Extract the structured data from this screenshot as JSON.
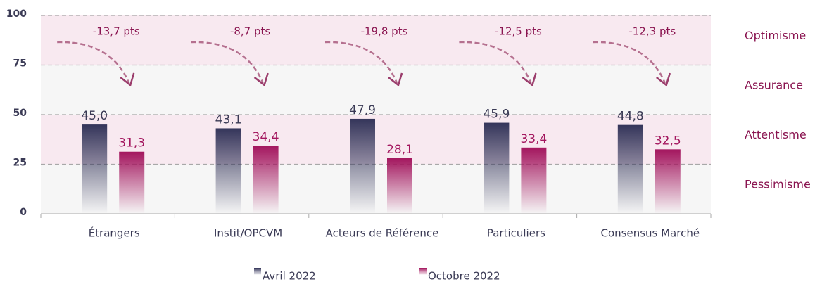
{
  "chart_data": {
    "type": "bar",
    "categories": [
      "Étrangers",
      "Instit/OPCVM",
      "Acteurs de Référence",
      "Particuliers",
      "Consensus Marché"
    ],
    "series": [
      {
        "name": "Avril 2022",
        "color": "#34355a",
        "values": [
          45.0,
          43.1,
          47.9,
          45.9,
          44.8
        ],
        "value_labels": [
          "45,0",
          "43,1",
          "47,9",
          "45,9",
          "44,8"
        ]
      },
      {
        "name": "Octobre 2022",
        "color": "#a3165e",
        "values": [
          31.3,
          34.4,
          28.1,
          33.4,
          32.5
        ],
        "value_labels": [
          "31,3",
          "34,4",
          "28,1",
          "33,4",
          "32,5"
        ]
      }
    ],
    "annotations": [
      "-13,7 pts",
      "-8,7 pts",
      "-19,8 pts",
      "-12,5 pts",
      "-12,3 pts"
    ],
    "zone_labels": [
      "Optimisme",
      "Assurance",
      "Attentisme",
      "Pessimisme"
    ],
    "ylim": [
      0,
      100
    ],
    "yticks": [
      0,
      25,
      50,
      75,
      100
    ],
    "grid": true,
    "legend": "bottom"
  }
}
